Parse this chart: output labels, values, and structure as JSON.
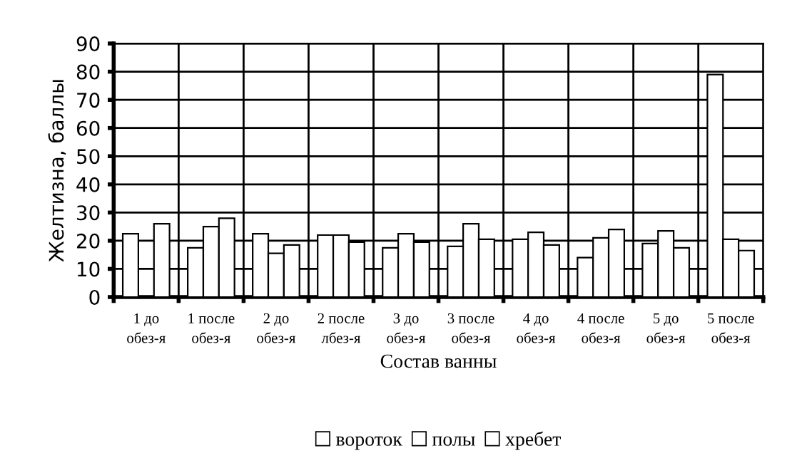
{
  "chart_data": {
    "type": "bar",
    "xlabel": "Состав ванны",
    "ylabel": "Желтизна, баллы",
    "categories": [
      "1 до\nобез-я",
      "1 после\nобез-я",
      "2 до\nобез-я",
      "2 после\nлбез-я",
      "3 до\nобез-я",
      "3 после\nобез-я",
      "4 до\nобез-я",
      "4 после\nобез-я",
      "5 до\nобез-я",
      "5 после\nобез-я"
    ],
    "series": [
      {
        "name": "вороток",
        "color": "#ffffff",
        "values": [
          22.5,
          17.5,
          22.5,
          22,
          17.5,
          18,
          20.5,
          14,
          19,
          79
        ]
      },
      {
        "name": "полы",
        "color": "#ffffff",
        "values": [
          null,
          25,
          15.5,
          22,
          22.5,
          26,
          23,
          21,
          23.5,
          20.5
        ]
      },
      {
        "name": "хребет",
        "color": "#ffffff",
        "values": [
          26,
          28,
          18.5,
          19.5,
          19.5,
          20.5,
          18.5,
          24,
          17.5,
          16.5
        ]
      }
    ],
    "ylim": [
      0,
      90
    ],
    "yticks": [
      0,
      10,
      20,
      30,
      40,
      50,
      60,
      70,
      80,
      90
    ],
    "grid": true,
    "legend": "bottom"
  }
}
